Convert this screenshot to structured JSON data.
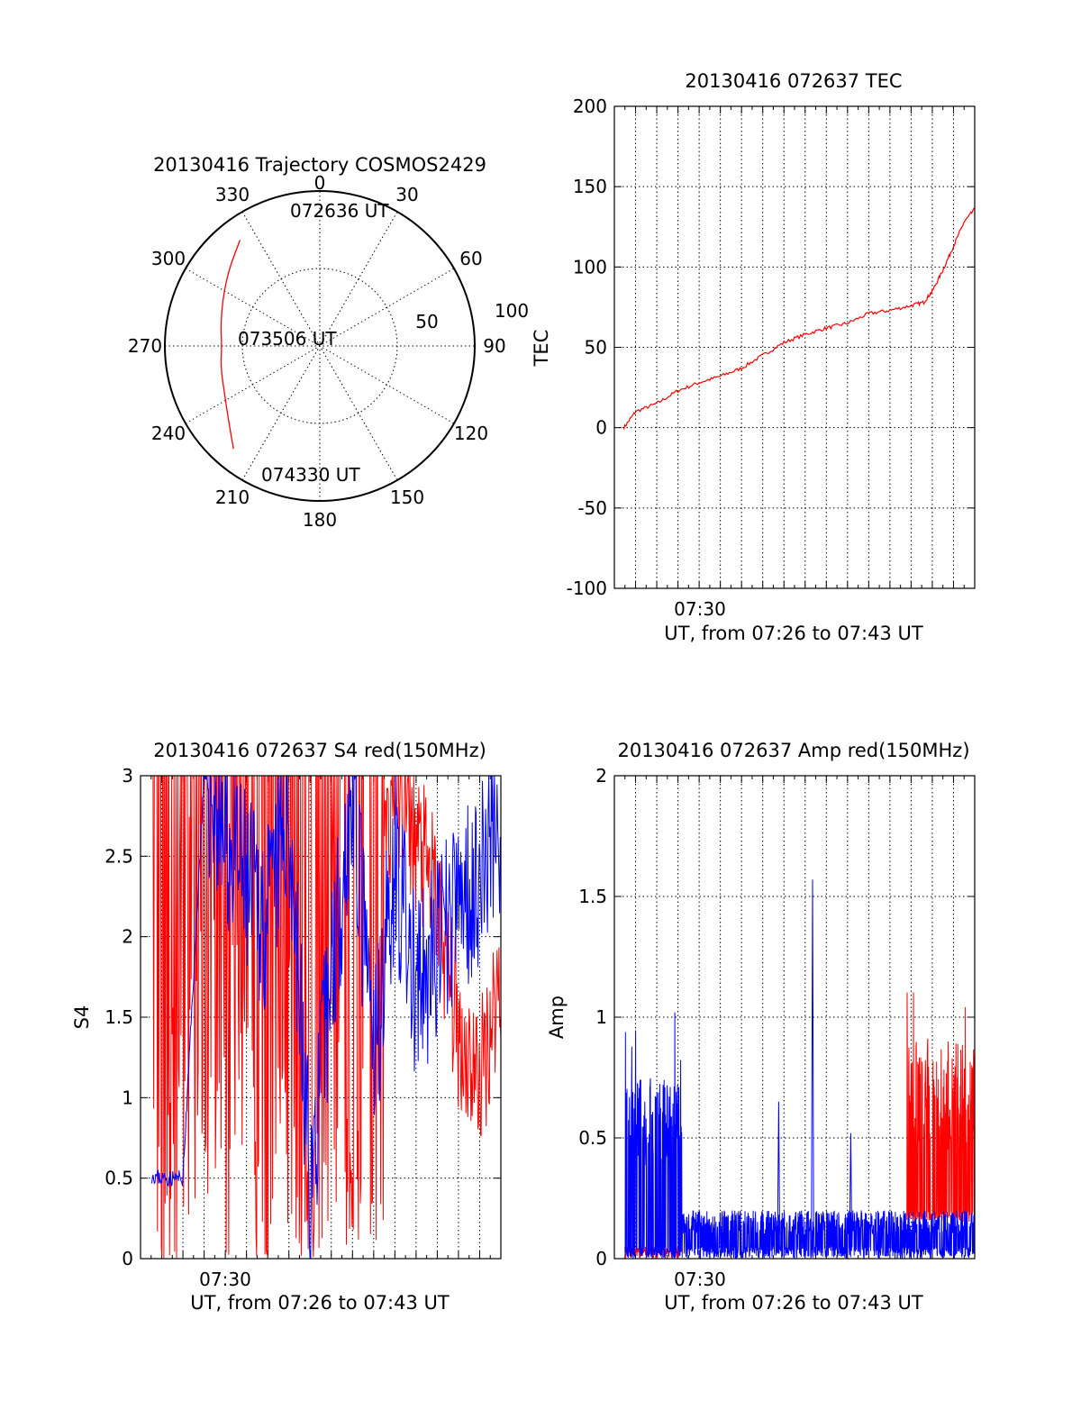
{
  "colors": {
    "red": "#ff0000",
    "blue": "#0000ff",
    "axis": "#000000",
    "grid": "#000000"
  },
  "chart_data": [
    {
      "id": "trajectory",
      "type": "polar",
      "title": "20130416 Trajectory COSMOS2429",
      "angle_labels": [
        "0",
        "30",
        "60",
        "90",
        "120",
        "150",
        "180",
        "210",
        "240",
        "270",
        "300",
        "330"
      ],
      "radial_labels": [
        "50",
        "100"
      ],
      "elevation_range": [
        0,
        90
      ],
      "grid": true,
      "series": [
        {
          "color": "red",
          "points": [
            {
              "az": 323,
              "el": 13
            },
            {
              "az": 310,
              "el": 21
            },
            {
              "az": 297,
              "el": 27
            },
            {
              "az": 283,
              "el": 31
            },
            {
              "az": 270,
              "el": 33
            },
            {
              "az": 257,
              "el": 31
            },
            {
              "az": 243,
              "el": 28
            },
            {
              "az": 230,
              "el": 21
            },
            {
              "az": 220,
              "el": 12
            }
          ]
        }
      ],
      "annotations": [
        "072636 UT",
        "073506 UT",
        "074330 UT"
      ]
    },
    {
      "id": "tec",
      "type": "line",
      "title": "20130416 072637 TEC",
      "xlabel": "UT, from 07:26 to 07:43 UT",
      "ylabel": "TEC",
      "x_tick_labels": [
        "07:30"
      ],
      "yticks": [
        "-100",
        "-50",
        "0",
        "50",
        "100",
        "150",
        "200"
      ],
      "ylim": [
        -100,
        200
      ],
      "xlim_minutes": [
        0,
        17
      ],
      "grid": true,
      "series": [
        {
          "color": "red",
          "x_minutes": [
            0.45,
            1,
            2,
            3,
            4,
            5,
            6,
            7,
            8,
            9,
            10,
            11,
            12,
            13,
            14,
            14.6,
            15,
            15.5,
            16,
            16.5,
            17
          ],
          "values": [
            0,
            10,
            15,
            23,
            28,
            32,
            37,
            45,
            53,
            58,
            62,
            65,
            71,
            73,
            76,
            78,
            85,
            98,
            113,
            128,
            136
          ]
        }
      ]
    },
    {
      "id": "s4",
      "type": "line",
      "title": "20130416 072637 S4 red(150MHz)",
      "xlabel": "UT, from 07:26 to 07:43 UT",
      "ylabel": "S4",
      "x_tick_labels": [
        "07:30"
      ],
      "yticks": [
        "0",
        "0.5",
        "1",
        "1.5",
        "2",
        "2.5",
        "3"
      ],
      "ylim": [
        0,
        3
      ],
      "xlim_minutes": [
        0,
        17
      ],
      "grid": true,
      "series": [
        {
          "color": "red",
          "description_values": {
            "x_minutes": [
              0.5,
              1,
              2,
              3,
              4,
              5,
              6,
              7,
              8,
              9,
              10,
              11,
              12,
              13,
              14,
              15,
              16,
              17
            ],
            "values": [
              3,
              0,
              3,
              2.2,
              3,
              1.8,
              0,
              2.5,
              0.3,
              3,
              0.5,
              2,
              3,
              2.6,
              2.2,
              1.4,
              1.1,
              1.8
            ]
          }
        },
        {
          "color": "blue",
          "description_values": {
            "x_minutes": [
              0.5,
              1,
              2,
              3,
              4,
              5,
              6,
              7,
              8,
              9,
              10,
              11,
              12,
              13,
              14,
              15,
              16,
              17
            ],
            "values": [
              0.52,
              0.5,
              0.5,
              3,
              2.6,
              2.3,
              2.1,
              2.8,
              0.4,
              1.8,
              2.9,
              1.2,
              2.5,
              1.6,
              1.9,
              2.2,
              2.4,
              2.7
            ]
          }
        }
      ]
    },
    {
      "id": "amp",
      "type": "line",
      "title": "20130416 072637 Amp red(150MHz)",
      "xlabel": "UT, from 07:26 to 07:43 UT",
      "ylabel": "Amp",
      "x_tick_labels": [
        "07:30"
      ],
      "yticks": [
        "0",
        "0.5",
        "1",
        "1.5",
        "2"
      ],
      "ylim": [
        0,
        2
      ],
      "xlim_minutes": [
        0,
        17
      ],
      "grid": true,
      "series": [
        {
          "color": "red",
          "segments": [
            {
              "x_minutes": [
                0.5,
                3.2
              ],
              "level_range": [
                0,
                0.05
              ]
            },
            {
              "x_minutes": [
                13.8,
                17
              ],
              "level_range": [
                0.15,
                0.9
              ],
              "peak": 1.3
            }
          ]
        },
        {
          "color": "blue",
          "segments": [
            {
              "x_minutes": [
                0.5,
                3.2
              ],
              "level_range": [
                0,
                0.75
              ],
              "peak": 1.1
            },
            {
              "x_minutes": [
                3.2,
                17
              ],
              "level_range": [
                0,
                0.2
              ]
            },
            {
              "x_minutes": [
                9.3,
                9.4
              ],
              "peak": 1.57
            },
            {
              "x_minutes": [
                7.7,
                7.8
              ],
              "peak": 0.65
            },
            {
              "x_minutes": [
                11.1,
                11.2
              ],
              "peak": 0.52
            }
          ]
        }
      ]
    }
  ]
}
